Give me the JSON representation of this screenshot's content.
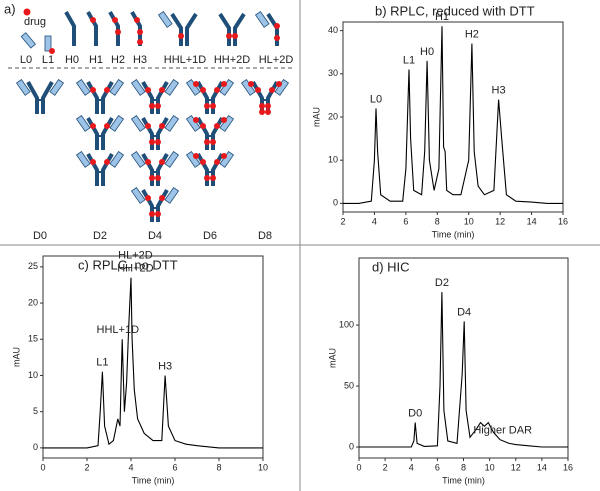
{
  "diagram": {
    "panel_label": "a)",
    "drug_label": "drug",
    "top_labels": [
      "L0",
      "L1",
      "H0",
      "H1",
      "H2",
      "H3",
      "HHL+1D",
      "HH+2D",
      "HL+2D"
    ],
    "bottom_labels": [
      "D0",
      "D2",
      "D4",
      "D6",
      "D8"
    ]
  },
  "chart_data": [
    {
      "type": "line",
      "title": "b) RPLC, reduced with DTT",
      "xlabel": "Time (min)",
      "ylabel": "mAU",
      "xlim": [
        2,
        16
      ],
      "xticks": [
        2,
        4,
        6,
        8,
        10,
        12,
        14,
        16
      ],
      "ylim": [
        -2,
        42
      ],
      "yticks": [
        0,
        10,
        20,
        30,
        40
      ],
      "series": [
        {
          "color": "#000000",
          "x": [
            2,
            3,
            3.8,
            4.0,
            4.1,
            4.2,
            4.4,
            5,
            5.8,
            6.0,
            6.2,
            6.3,
            6.5,
            7.0,
            7.2,
            7.35,
            7.5,
            7.8,
            8.1,
            8.3,
            8.4,
            8.5,
            8.6,
            9.0,
            9.5,
            10.0,
            10.2,
            10.35,
            10.6,
            11,
            11.6,
            11.9,
            12.1,
            12.4,
            13,
            14,
            15,
            16
          ],
          "values": [
            0,
            0,
            0.5,
            10,
            22,
            12,
            2,
            0.5,
            0.5,
            8,
            31,
            15,
            3,
            2,
            12,
            33,
            10,
            3,
            8,
            41,
            13,
            12,
            3,
            2,
            2,
            10,
            37,
            12,
            4,
            2,
            3,
            24,
            15,
            2,
            0.5,
            0.3,
            0,
            0
          ]
        }
      ],
      "annotations": [
        {
          "lines": [
            "L0"
          ],
          "x": 4.1
        },
        {
          "lines": [
            "L1"
          ],
          "x": 6.2
        },
        {
          "lines": [
            "H0"
          ],
          "x": 7.35
        },
        {
          "lines": [
            "H1"
          ],
          "x": 8.3
        },
        {
          "lines": [
            "H2"
          ],
          "x": 10.2
        },
        {
          "lines": [
            "H3"
          ],
          "x": 11.9
        }
      ]
    },
    {
      "type": "line",
      "title": "c) RPLC, no DTT",
      "xlabel": "Time (min)",
      "ylabel": "mAU",
      "xlim": [
        0,
        10
      ],
      "xticks": [
        0,
        2,
        4,
        6,
        8,
        10
      ],
      "ylim": [
        -1.4,
        26.5
      ],
      "yticks": [
        0,
        5,
        10,
        15,
        20,
        25
      ],
      "series": [
        {
          "color": "#000000",
          "x": [
            0,
            1,
            2,
            2.5,
            2.6,
            2.7,
            2.8,
            3.0,
            3.2,
            3.3,
            3.4,
            3.5,
            3.6,
            3.7,
            3.8,
            3.9,
            4.0,
            4.05,
            4.15,
            4.3,
            4.6,
            5.0,
            5.4,
            5.55,
            5.7,
            6.0,
            6.5,
            7,
            8,
            9,
            10
          ],
          "values": [
            0,
            0,
            0,
            0.3,
            5,
            10.5,
            3,
            0.5,
            1,
            2.5,
            4,
            3,
            15,
            5,
            9,
            17,
            23.5,
            15,
            8,
            4,
            2,
            1,
            1,
            10,
            3,
            1,
            0.5,
            0.3,
            0,
            0,
            0
          ]
        }
      ],
      "annotations": [
        {
          "lines": [
            "L1"
          ],
          "x": 2.7
        },
        {
          "lines": [
            "HHL+1D"
          ],
          "x": 3.4
        },
        {
          "lines": [
            "HH+2D",
            "HL+2D"
          ],
          "x": 4.2
        },
        {
          "lines": [
            "H3"
          ],
          "x": 5.55
        }
      ]
    },
    {
      "type": "line",
      "title": "d) HIC",
      "xlabel": "Time (min)",
      "ylabel": "mAU",
      "xlim": [
        0,
        16
      ],
      "xticks": [
        0,
        2,
        4,
        6,
        8,
        10,
        12,
        14,
        16
      ],
      "ylim": [
        -9,
        155
      ],
      "yticks": [
        0,
        50,
        100
      ],
      "series": [
        {
          "color": "#000000",
          "x": [
            0,
            2,
            4,
            4.2,
            4.3,
            4.45,
            5,
            6,
            6.2,
            6.35,
            6.5,
            6.8,
            7.5,
            7.9,
            8.05,
            8.2,
            8.5,
            9,
            9.3,
            9.6,
            9.9,
            10.3,
            10.8,
            11.5,
            12,
            13,
            14,
            16
          ],
          "values": [
            0,
            0,
            0,
            5,
            20,
            3,
            0.5,
            1,
            50,
            127,
            30,
            5,
            3,
            60,
            103,
            30,
            8,
            15,
            20,
            17,
            20,
            12,
            6,
            3,
            2,
            1,
            0,
            0
          ]
        }
      ],
      "annotations": [
        {
          "lines": [
            "D0"
          ],
          "x": 4.3
        },
        {
          "lines": [
            "D2"
          ],
          "x": 6.35
        },
        {
          "lines": [
            "D4"
          ],
          "x": 8.05
        },
        {
          "lines": [
            "Higher DAR"
          ],
          "x": 11.0
        }
      ]
    }
  ]
}
